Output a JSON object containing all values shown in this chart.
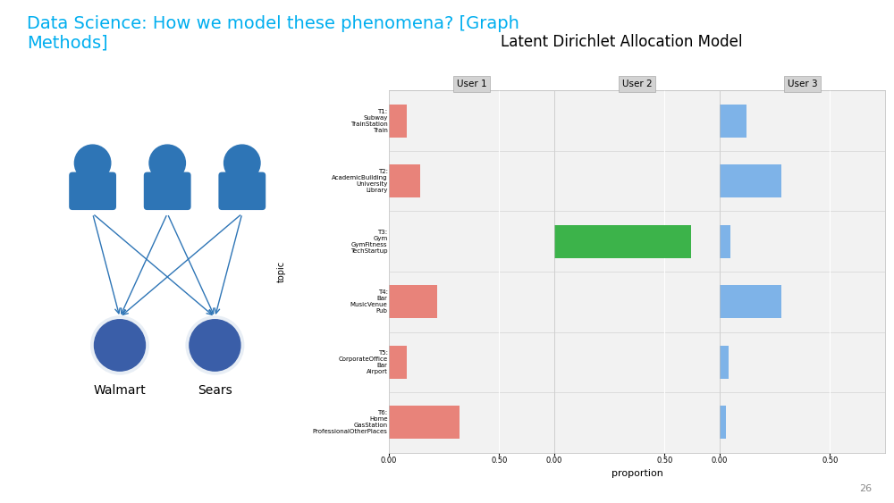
{
  "title": "Latent Dirichlet Allocation Model",
  "slide_title": "Data Science: How we model these phenomena? [Graph\nMethods]",
  "slide_title_color": "#00AEEF",
  "users": [
    "User 1",
    "User 2",
    "User 3"
  ],
  "topics": [
    "T1:\nSubway\nTrainStation\nTrain",
    "T2:\nAcademicBuilding\nUniversity\nLibrary",
    "T3:\nGym\nGymFitness\nTechStartup",
    "T4:\nBar\nMusicVenue\nPub",
    "T5:\nCorporateOffice\nBar\nAirport",
    "T6:\nHome\nGasStation\nProfessionalOtherPlaces"
  ],
  "user1_values": [
    0.08,
    0.14,
    0.0,
    0.22,
    0.08,
    0.32
  ],
  "user2_values": [
    0.0,
    0.0,
    0.62,
    0.0,
    0.0,
    0.0
  ],
  "user3_values": [
    0.12,
    0.28,
    0.05,
    0.28,
    0.04,
    0.03
  ],
  "user1_color": "#E8837A",
  "user2_color": "#3CB34A",
  "user3_color": "#7EB3E8",
  "xlabel": "proportion",
  "ylabel": "topic",
  "xlim": [
    0,
    0.75
  ],
  "background_color": "#FFFFFF",
  "header_color": "#D3D3D3",
  "page_number": "26",
  "person_color": "#2E75B6",
  "store_color": "#3A5EA8",
  "arrow_color": "#2E75B6"
}
